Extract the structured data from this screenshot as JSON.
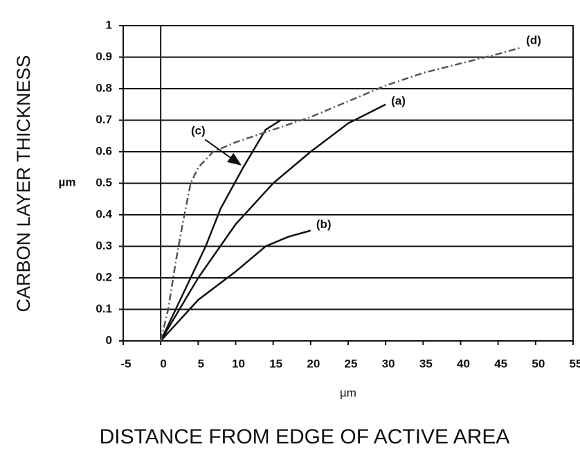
{
  "chart_data": {
    "type": "line",
    "ylabel": "CARBON LAYER THICKNESS",
    "y_unit": "µm",
    "x_unit": "µm",
    "xlabel": "DISTANCE FROM EDGE OF ACTIVE AREA",
    "xlim": [
      -5,
      55
    ],
    "xticks": [
      -5,
      0,
      5,
      10,
      15,
      20,
      25,
      30,
      35,
      40,
      45,
      50,
      55
    ],
    "ylim": [
      0,
      1
    ],
    "yticks": [
      0,
      0.1,
      0.2,
      0.3,
      0.4,
      0.5,
      0.6,
      0.7,
      0.8,
      0.9,
      1
    ],
    "grid": true,
    "series": [
      {
        "name": "(a)",
        "color": "#111111",
        "line_style": "solid",
        "x": [
          0,
          5,
          10,
          15,
          20,
          25,
          30
        ],
        "values": [
          0,
          0.2,
          0.37,
          0.5,
          0.6,
          0.69,
          0.75
        ]
      },
      {
        "name": "(b)",
        "color": "#111111",
        "line_style": "solid",
        "x": [
          0,
          5,
          10,
          14,
          17,
          20
        ],
        "values": [
          0,
          0.13,
          0.22,
          0.3,
          0.33,
          0.35
        ]
      },
      {
        "name": "(c)",
        "color": "#111111",
        "line_style": "solid",
        "x": [
          0,
          3,
          6,
          8,
          11,
          14,
          16
        ],
        "values": [
          0,
          0.15,
          0.3,
          0.42,
          0.55,
          0.67,
          0.7
        ]
      },
      {
        "name": "(d)",
        "color": "#555555",
        "line_style": "dashdot",
        "x": [
          0,
          1,
          2,
          3,
          4,
          5,
          7,
          10,
          15,
          20,
          25,
          30,
          35,
          40,
          45,
          48
        ],
        "values": [
          0,
          0.1,
          0.25,
          0.38,
          0.5,
          0.55,
          0.6,
          0.63,
          0.67,
          0.71,
          0.76,
          0.81,
          0.85,
          0.88,
          0.91,
          0.93
        ]
      }
    ]
  }
}
